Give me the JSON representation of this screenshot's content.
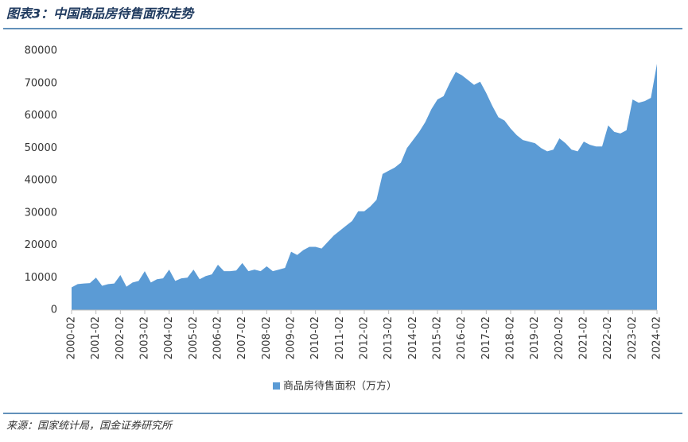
{
  "chart_data": {
    "type": "area",
    "title": "图表3：中国商品房待售面积走势",
    "source": "来源：国家统计局，国金证券研究所",
    "categories": [
      "2000-02",
      null,
      null,
      null,
      "2001-02",
      null,
      null,
      null,
      "2002-02",
      null,
      null,
      null,
      "2003-02",
      null,
      null,
      null,
      "2004-02",
      null,
      null,
      null,
      "2005-02",
      null,
      null,
      null,
      "2006-02",
      null,
      null,
      null,
      "2007-02",
      null,
      null,
      null,
      "2008-02",
      null,
      null,
      null,
      "2009-02",
      null,
      null,
      null,
      "2010-02",
      null,
      null,
      null,
      "2011-02",
      null,
      null,
      null,
      "2012-02",
      null,
      null,
      null,
      "2013-02",
      null,
      null,
      null,
      "2014-02",
      null,
      null,
      null,
      "2015-02",
      null,
      null,
      null,
      "2016-02",
      null,
      null,
      null,
      "2017-02",
      null,
      null,
      null,
      "2018-02",
      null,
      null,
      null,
      "2019-02",
      null,
      null,
      null,
      "2020-02",
      null,
      null,
      null,
      "2021-02",
      null,
      null,
      null,
      "2022-02",
      null,
      null,
      null,
      "2023-02",
      null,
      null,
      null,
      "2024-02"
    ],
    "series": [
      {
        "name": "商品房待售面积（万方）",
        "color": "#5b9bd5",
        "values": [
          7000,
          8000,
          8200,
          8300,
          10000,
          7500,
          8000,
          8200,
          10800,
          7200,
          8500,
          9000,
          12000,
          8500,
          9500,
          9800,
          12500,
          9000,
          9800,
          10000,
          12500,
          9500,
          10500,
          11000,
          14000,
          12000,
          12000,
          12200,
          14500,
          12000,
          12500,
          12000,
          13500,
          12000,
          12500,
          13000,
          18000,
          17000,
          18500,
          19500,
          19500,
          19000,
          21000,
          23000,
          24500,
          26000,
          27500,
          30500,
          30500,
          32000,
          34000,
          42000,
          43000,
          44000,
          45500,
          50000,
          52500,
          55000,
          58000,
          62000,
          65000,
          66000,
          70000,
          73500,
          72500,
          71000,
          69500,
          70500,
          67000,
          63000,
          59500,
          58500,
          56000,
          54000,
          52500,
          52000,
          51500,
          50000,
          49000,
          49500,
          53000,
          51500,
          49500,
          49000,
          52000,
          51000,
          50500,
          50500,
          57000,
          55000,
          54500,
          55500,
          65000,
          64000,
          64500,
          65500,
          76000
        ]
      }
    ],
    "ylim": [
      0,
      80000
    ],
    "yticks": [
      0,
      10000,
      20000,
      30000,
      40000,
      50000,
      60000,
      70000,
      80000
    ],
    "grid": false
  }
}
